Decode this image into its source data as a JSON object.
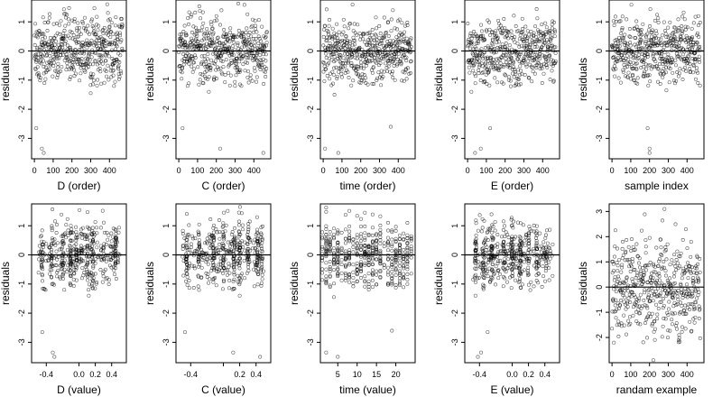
{
  "figure": {
    "background": "#ffffff",
    "point_color": "#000000",
    "reference_line_color": "#000000"
  },
  "chart_data": [
    {
      "type": "scatter",
      "xlabel": "D (order)",
      "ylabel": "residuals",
      "xlim": [
        -15,
        490
      ],
      "ylim": [
        -3.7,
        1.75
      ],
      "xticks": [
        0,
        100,
        200,
        300,
        400
      ],
      "xtick_labels": [
        "0",
        "100",
        "200",
        "300",
        "400"
      ],
      "yticks": [
        1,
        0,
        -1,
        -2,
        -3
      ],
      "ytick_labels": [
        "1",
        "0",
        "-1",
        "-2",
        "-3"
      ],
      "hline": 0,
      "n_points": 470,
      "x_distribution": "uniform",
      "x_range": [
        0,
        470
      ],
      "y_distribution": "normal",
      "y_sd": 0.55,
      "outliers": [
        [
          10,
          -2.65
        ],
        [
          40,
          -3.35
        ],
        [
          50,
          -3.5
        ],
        [
          300,
          -1.45
        ]
      ],
      "grid": false
    },
    {
      "type": "scatter",
      "xlabel": "C (order)",
      "ylabel": "residuals",
      "xlim": [
        -15,
        490
      ],
      "ylim": [
        -3.7,
        1.75
      ],
      "xticks": [
        0,
        100,
        200,
        300,
        400
      ],
      "xtick_labels": [
        "0",
        "100",
        "200",
        "300",
        "400"
      ],
      "yticks": [
        1,
        0,
        -1,
        -2,
        -3
      ],
      "ytick_labels": [
        "1",
        "0",
        "-1",
        "-2",
        "-3"
      ],
      "hline": 0,
      "n_points": 470,
      "x_distribution": "uniform",
      "x_range": [
        0,
        470
      ],
      "y_distribution": "normal",
      "y_sd": 0.55,
      "outliers": [
        [
          20,
          -2.65
        ],
        [
          220,
          -3.35
        ],
        [
          450,
          -3.5
        ],
        [
          160,
          -1.4
        ]
      ],
      "grid": false
    },
    {
      "type": "scatter",
      "xlabel": "time (order)",
      "ylabel": "residuals",
      "xlim": [
        -15,
        490
      ],
      "ylim": [
        -3.7,
        1.75
      ],
      "xticks": [
        0,
        100,
        200,
        300,
        400
      ],
      "xtick_labels": [
        "0",
        "100",
        "200",
        "300",
        "400"
      ],
      "yticks": [
        1,
        0,
        -1,
        -2,
        -3
      ],
      "ytick_labels": [
        "1",
        "0",
        "-1",
        "-2",
        "-3"
      ],
      "hline": 0,
      "n_points": 470,
      "x_distribution": "uniform",
      "x_range": [
        0,
        470
      ],
      "y_distribution": "normal",
      "y_sd": 0.55,
      "outliers": [
        [
          10,
          -3.35
        ],
        [
          80,
          -3.5
        ],
        [
          360,
          -2.6
        ],
        [
          60,
          -1.5
        ]
      ],
      "grid": false
    },
    {
      "type": "scatter",
      "xlabel": "E (order)",
      "ylabel": "residuals",
      "xlim": [
        -15,
        490
      ],
      "ylim": [
        -3.7,
        1.75
      ],
      "xticks": [
        0,
        100,
        200,
        300,
        400
      ],
      "xtick_labels": [
        "0",
        "100",
        "200",
        "300",
        "400"
      ],
      "yticks": [
        1,
        0,
        -1,
        -2,
        -3
      ],
      "ytick_labels": [
        "1",
        "0",
        "-1",
        "-2",
        "-3"
      ],
      "hline": 0,
      "n_points": 470,
      "x_distribution": "uniform",
      "x_range": [
        0,
        470
      ],
      "y_distribution": "normal",
      "y_sd": 0.55,
      "outliers": [
        [
          40,
          -3.5
        ],
        [
          70,
          -3.35
        ],
        [
          120,
          -2.65
        ],
        [
          20,
          -1.4
        ]
      ],
      "grid": false
    },
    {
      "type": "scatter",
      "xlabel": "sample index",
      "ylabel": "residuals",
      "xlim": [
        -15,
        490
      ],
      "ylim": [
        -3.7,
        1.75
      ],
      "xticks": [
        0,
        100,
        200,
        300,
        400
      ],
      "xtick_labels": [
        "0",
        "100",
        "200",
        "300",
        "400"
      ],
      "yticks": [
        1,
        0,
        -1,
        -2,
        -3
      ],
      "ytick_labels": [
        "1",
        "0",
        "-1",
        "-2",
        "-3"
      ],
      "hline": 0,
      "n_points": 470,
      "x_distribution": "uniform",
      "x_range": [
        0,
        470
      ],
      "y_distribution": "normal",
      "y_sd": 0.55,
      "outliers": [
        [
          200,
          -3.5
        ],
        [
          200,
          -3.35
        ],
        [
          190,
          -2.65
        ],
        [
          290,
          -1.35
        ]
      ],
      "grid": false
    },
    {
      "type": "scatter",
      "xlabel": "D (value)",
      "ylabel": "residuals",
      "xlim": [
        -0.58,
        0.58
      ],
      "ylim": [
        -3.7,
        1.75
      ],
      "xticks": [
        -0.4,
        0.0,
        0.2,
        0.4
      ],
      "xtick_labels": [
        "-0.4",
        "0.0",
        "0.2",
        "0.4"
      ],
      "yticks": [
        1,
        0,
        -1,
        -2,
        -3
      ],
      "ytick_labels": [
        "1",
        "0",
        "-1",
        "-2",
        "-3"
      ],
      "hline": 0,
      "n_points": 470,
      "x_distribution": "clustered",
      "x_range": [
        -0.5,
        0.5
      ],
      "x_clusters": [
        -0.45,
        -0.33,
        -0.2,
        -0.1,
        -0.03,
        0.03,
        0.1,
        0.17,
        0.3,
        0.45
      ],
      "y_distribution": "normal",
      "y_sd": 0.55,
      "outliers": [
        [
          -0.45,
          -2.65
        ],
        [
          -0.32,
          -3.35
        ],
        [
          -0.3,
          -3.5
        ],
        [
          0.12,
          -1.4
        ]
      ],
      "grid": false
    },
    {
      "type": "scatter",
      "xlabel": "C (value)",
      "ylabel": "residuals",
      "xlim": [
        -0.58,
        0.58
      ],
      "ylim": [
        -3.7,
        1.75
      ],
      "xticks": [
        -0.4,
        0.0,
        0.2,
        0.4
      ],
      "xtick_labels": [
        "-0.4",
        "",
        "0.2",
        "0.4"
      ],
      "yticks": [
        1,
        0,
        -1,
        -2,
        -3
      ],
      "ytick_labels": [
        "1",
        "0",
        "-1",
        "-2",
        "-3"
      ],
      "hline": 0,
      "n_points": 470,
      "x_distribution": "clustered",
      "x_range": [
        -0.5,
        0.5
      ],
      "x_clusters": [
        -0.45,
        -0.3,
        -0.12,
        0.0,
        0.13,
        0.2,
        0.3,
        0.42,
        0.47
      ],
      "y_distribution": "normal",
      "y_sd": 0.55,
      "outliers": [
        [
          -0.47,
          -2.65
        ],
        [
          0.12,
          -3.35
        ],
        [
          0.45,
          -3.5
        ],
        [
          0.2,
          -1.4
        ]
      ],
      "grid": false
    },
    {
      "type": "scatter",
      "xlabel": "time (value)",
      "ylabel": "residuals",
      "xlim": [
        0.5,
        25
      ],
      "ylim": [
        -3.7,
        1.75
      ],
      "xticks": [
        5,
        10,
        15,
        20
      ],
      "xtick_labels": [
        "5",
        "10",
        "15",
        "20"
      ],
      "yticks": [
        1,
        0,
        -1,
        -2,
        -3
      ],
      "ytick_labels": [
        "1",
        "0",
        "-1",
        "-2",
        "-3"
      ],
      "hline": 0,
      "n_points": 470,
      "x_distribution": "discrete",
      "x_range": [
        1,
        24
      ],
      "y_distribution": "normal",
      "y_sd": 0.55,
      "outliers": [
        [
          2,
          -3.35
        ],
        [
          5,
          -3.5
        ],
        [
          19,
          -2.6
        ],
        [
          4,
          -1.45
        ]
      ],
      "grid": false
    },
    {
      "type": "scatter",
      "xlabel": "E (value)",
      "ylabel": "residuals",
      "xlim": [
        -0.58,
        0.58
      ],
      "ylim": [
        -3.7,
        1.75
      ],
      "xticks": [
        -0.4,
        0.0,
        0.2,
        0.4
      ],
      "xtick_labels": [
        "-0.4",
        "0.0",
        "0.2",
        "0.4"
      ],
      "yticks": [
        1,
        0,
        -1,
        -2,
        -3
      ],
      "ytick_labels": [
        "1",
        "0",
        "-1",
        "-2",
        "-3"
      ],
      "hline": 0,
      "n_points": 470,
      "x_distribution": "clustered",
      "x_range": [
        -0.5,
        0.5
      ],
      "x_clusters": [
        -0.45,
        -0.35,
        -0.25,
        -0.1,
        0.0,
        0.1,
        0.2,
        0.3,
        0.42
      ],
      "y_distribution": "normal",
      "y_sd": 0.55,
      "outliers": [
        [
          -0.42,
          -3.5
        ],
        [
          -0.38,
          -3.35
        ],
        [
          -0.3,
          -2.65
        ],
        [
          -0.45,
          -1.4
        ]
      ],
      "grid": false
    },
    {
      "type": "scatter",
      "xlabel": "randam example",
      "ylabel": "residuals",
      "xlim": [
        -15,
        490
      ],
      "ylim": [
        -3.0,
        3.3
      ],
      "xticks": [
        0,
        100,
        200,
        300,
        400
      ],
      "xtick_labels": [
        "0",
        "100",
        "200",
        "300",
        "400"
      ],
      "yticks": [
        3,
        2,
        1,
        0,
        -1,
        -2
      ],
      "ytick_labels": [
        "3",
        "2",
        "1",
        "0",
        "-1",
        "-2"
      ],
      "hline": 0,
      "n_points": 470,
      "x_distribution": "uniform",
      "x_range": [
        0,
        470
      ],
      "y_distribution": "normal",
      "y_sd": 1.0,
      "outliers": [
        [
          280,
          3.1
        ],
        [
          220,
          -2.9
        ],
        [
          10,
          -2.2
        ]
      ],
      "grid": false
    }
  ]
}
